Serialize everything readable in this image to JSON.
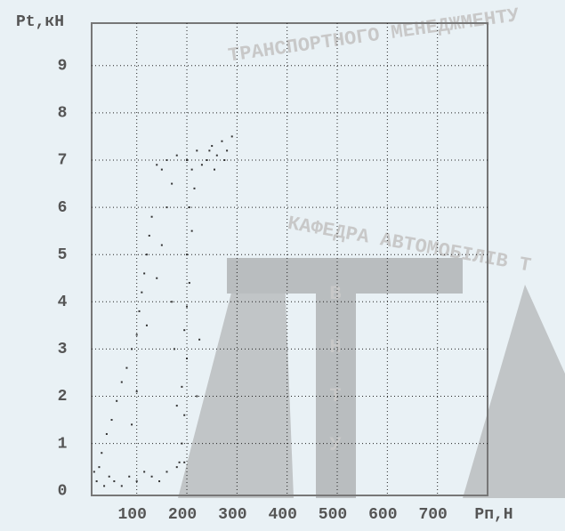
{
  "chart_data": {
    "type": "scatter",
    "y_label": "Pt,кН",
    "x_label": "Pп,Н",
    "xlim": [
      10,
      800
    ],
    "ylim": [
      -0.1,
      9.9
    ],
    "xticks": [
      100,
      200,
      300,
      400,
      500,
      600,
      700
    ],
    "yticks": [
      0,
      1,
      2,
      3,
      4,
      5,
      6,
      7,
      8,
      9
    ],
    "grid": true,
    "color": "#333333",
    "x": [
      15,
      20,
      25,
      35,
      45,
      55,
      70,
      85,
      100,
      115,
      130,
      145,
      160,
      180,
      195,
      30,
      40,
      50,
      60,
      70,
      80,
      90,
      100,
      105,
      110,
      115,
      120,
      125,
      130,
      100,
      90,
      120,
      140,
      150,
      160,
      170,
      150,
      190,
      195,
      190,
      200,
      195,
      200,
      205,
      200,
      210,
      205,
      215,
      210,
      185,
      180,
      175,
      170,
      220,
      225,
      140,
      160,
      180,
      200,
      220,
      240,
      250,
      260,
      270,
      280,
      290,
      230,
      255,
      275,
      245
    ],
    "y": [
      0.4,
      0.2,
      0.5,
      0.1,
      0.3,
      0.2,
      0.1,
      0.3,
      0.2,
      0.4,
      0.3,
      0.2,
      0.4,
      0.5,
      0.6,
      0.8,
      1.2,
      1.5,
      1.9,
      2.3,
      2.6,
      3.0,
      3.3,
      3.8,
      4.2,
      4.6,
      5.0,
      5.4,
      5.8,
      2.1,
      1.4,
      3.5,
      4.5,
      5.2,
      6.0,
      6.5,
      6.8,
      1.0,
      1.6,
      2.2,
      2.8,
      3.4,
      3.9,
      4.4,
      5.0,
      5.5,
      6.0,
      6.4,
      6.8,
      0.6,
      1.8,
      3.0,
      4.0,
      2.0,
      3.2,
      6.9,
      7.0,
      7.1,
      7.0,
      7.2,
      7.0,
      7.3,
      7.1,
      7.4,
      7.2,
      7.5,
      6.9,
      6.8,
      7.0,
      7.2
    ]
  },
  "watermark": [
    "ТРАНСПОРТНОГО МЕНЕДЖМЕНТУ",
    "КАФЕДРА АВТОМОБІЛІВ Т",
    "В",
    "Н",
    "Т",
    "У"
  ]
}
